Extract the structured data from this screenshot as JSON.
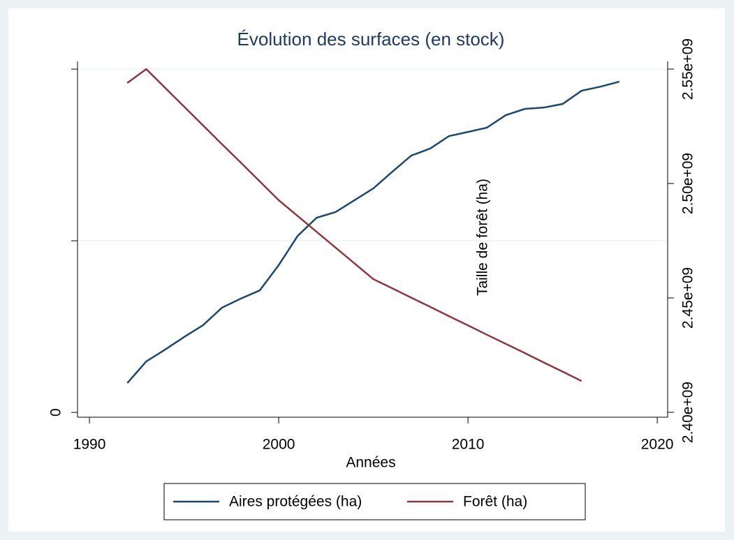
{
  "chart_data": {
    "type": "line",
    "title": "Évolution des surfaces (en stock)",
    "x_label": "Années",
    "y2_label": "Taille de forêt (ha)",
    "xlim": [
      1989.37,
      2020.55
    ],
    "xticks": [
      1990,
      2000,
      2010,
      2020
    ],
    "ylim": [
      -280000,
      20450000
    ],
    "yticks": [
      0
    ],
    "ygrid": [
      10000000,
      20000000
    ],
    "y2lim": [
      2397870000,
      2553350000
    ],
    "y2ticks": [
      {
        "value": 2400000000,
        "label": "2.40e+09"
      },
      {
        "value": 2450000000,
        "label": "2.45e+09"
      },
      {
        "value": 2500000000,
        "label": "2.50e+09"
      },
      {
        "value": 2550000000,
        "label": "2.55e+09"
      }
    ],
    "grid": true,
    "legend": "bottom",
    "series": [
      {
        "name": "Aires protégées (ha)",
        "color": "#1a476f",
        "x": [
          1992,
          1993,
          1994,
          1995,
          1996,
          1997,
          1998,
          1999,
          2000,
          2001,
          2002,
          2003,
          2004,
          2005,
          2006,
          2007,
          2008,
          2009,
          2010,
          2011,
          2012,
          2013,
          2014,
          2015,
          2016,
          2017,
          2018
        ],
        "values": [
          1710000,
          2970000,
          3660000,
          4390000,
          5080000,
          6100000,
          6630000,
          7110000,
          8580000,
          10280000,
          11340000,
          11670000,
          12360000,
          13050000,
          14020000,
          14960000,
          15370000,
          16100000,
          16340000,
          16590000,
          17320000,
          17680000,
          17760000,
          17970000,
          18740000,
          18980000,
          19270000
        ]
      },
      {
        "name": "Forêt (ha)",
        "color": "#90353b",
        "axis": "y2",
        "x": [
          1992,
          1993,
          1994,
          1995,
          1996,
          1997,
          1998,
          1999,
          2000,
          2001,
          2002,
          2003,
          2004,
          2005,
          2006,
          2007,
          2008,
          2009,
          2010,
          2011,
          2012,
          2013,
          2014,
          2015,
          2016
        ],
        "values": [
          2543900000,
          2550000000,
          2541800000,
          2533600000,
          2525400000,
          2517200000,
          2509100000,
          2500900000,
          2492700000,
          2485800000,
          2478900000,
          2472000000,
          2465100000,
          2458200000,
          2454200000,
          2450100000,
          2446100000,
          2442000000,
          2438000000,
          2433900000,
          2429900000,
          2425900000,
          2421800000,
          2417800000,
          2413700000
        ]
      }
    ]
  }
}
